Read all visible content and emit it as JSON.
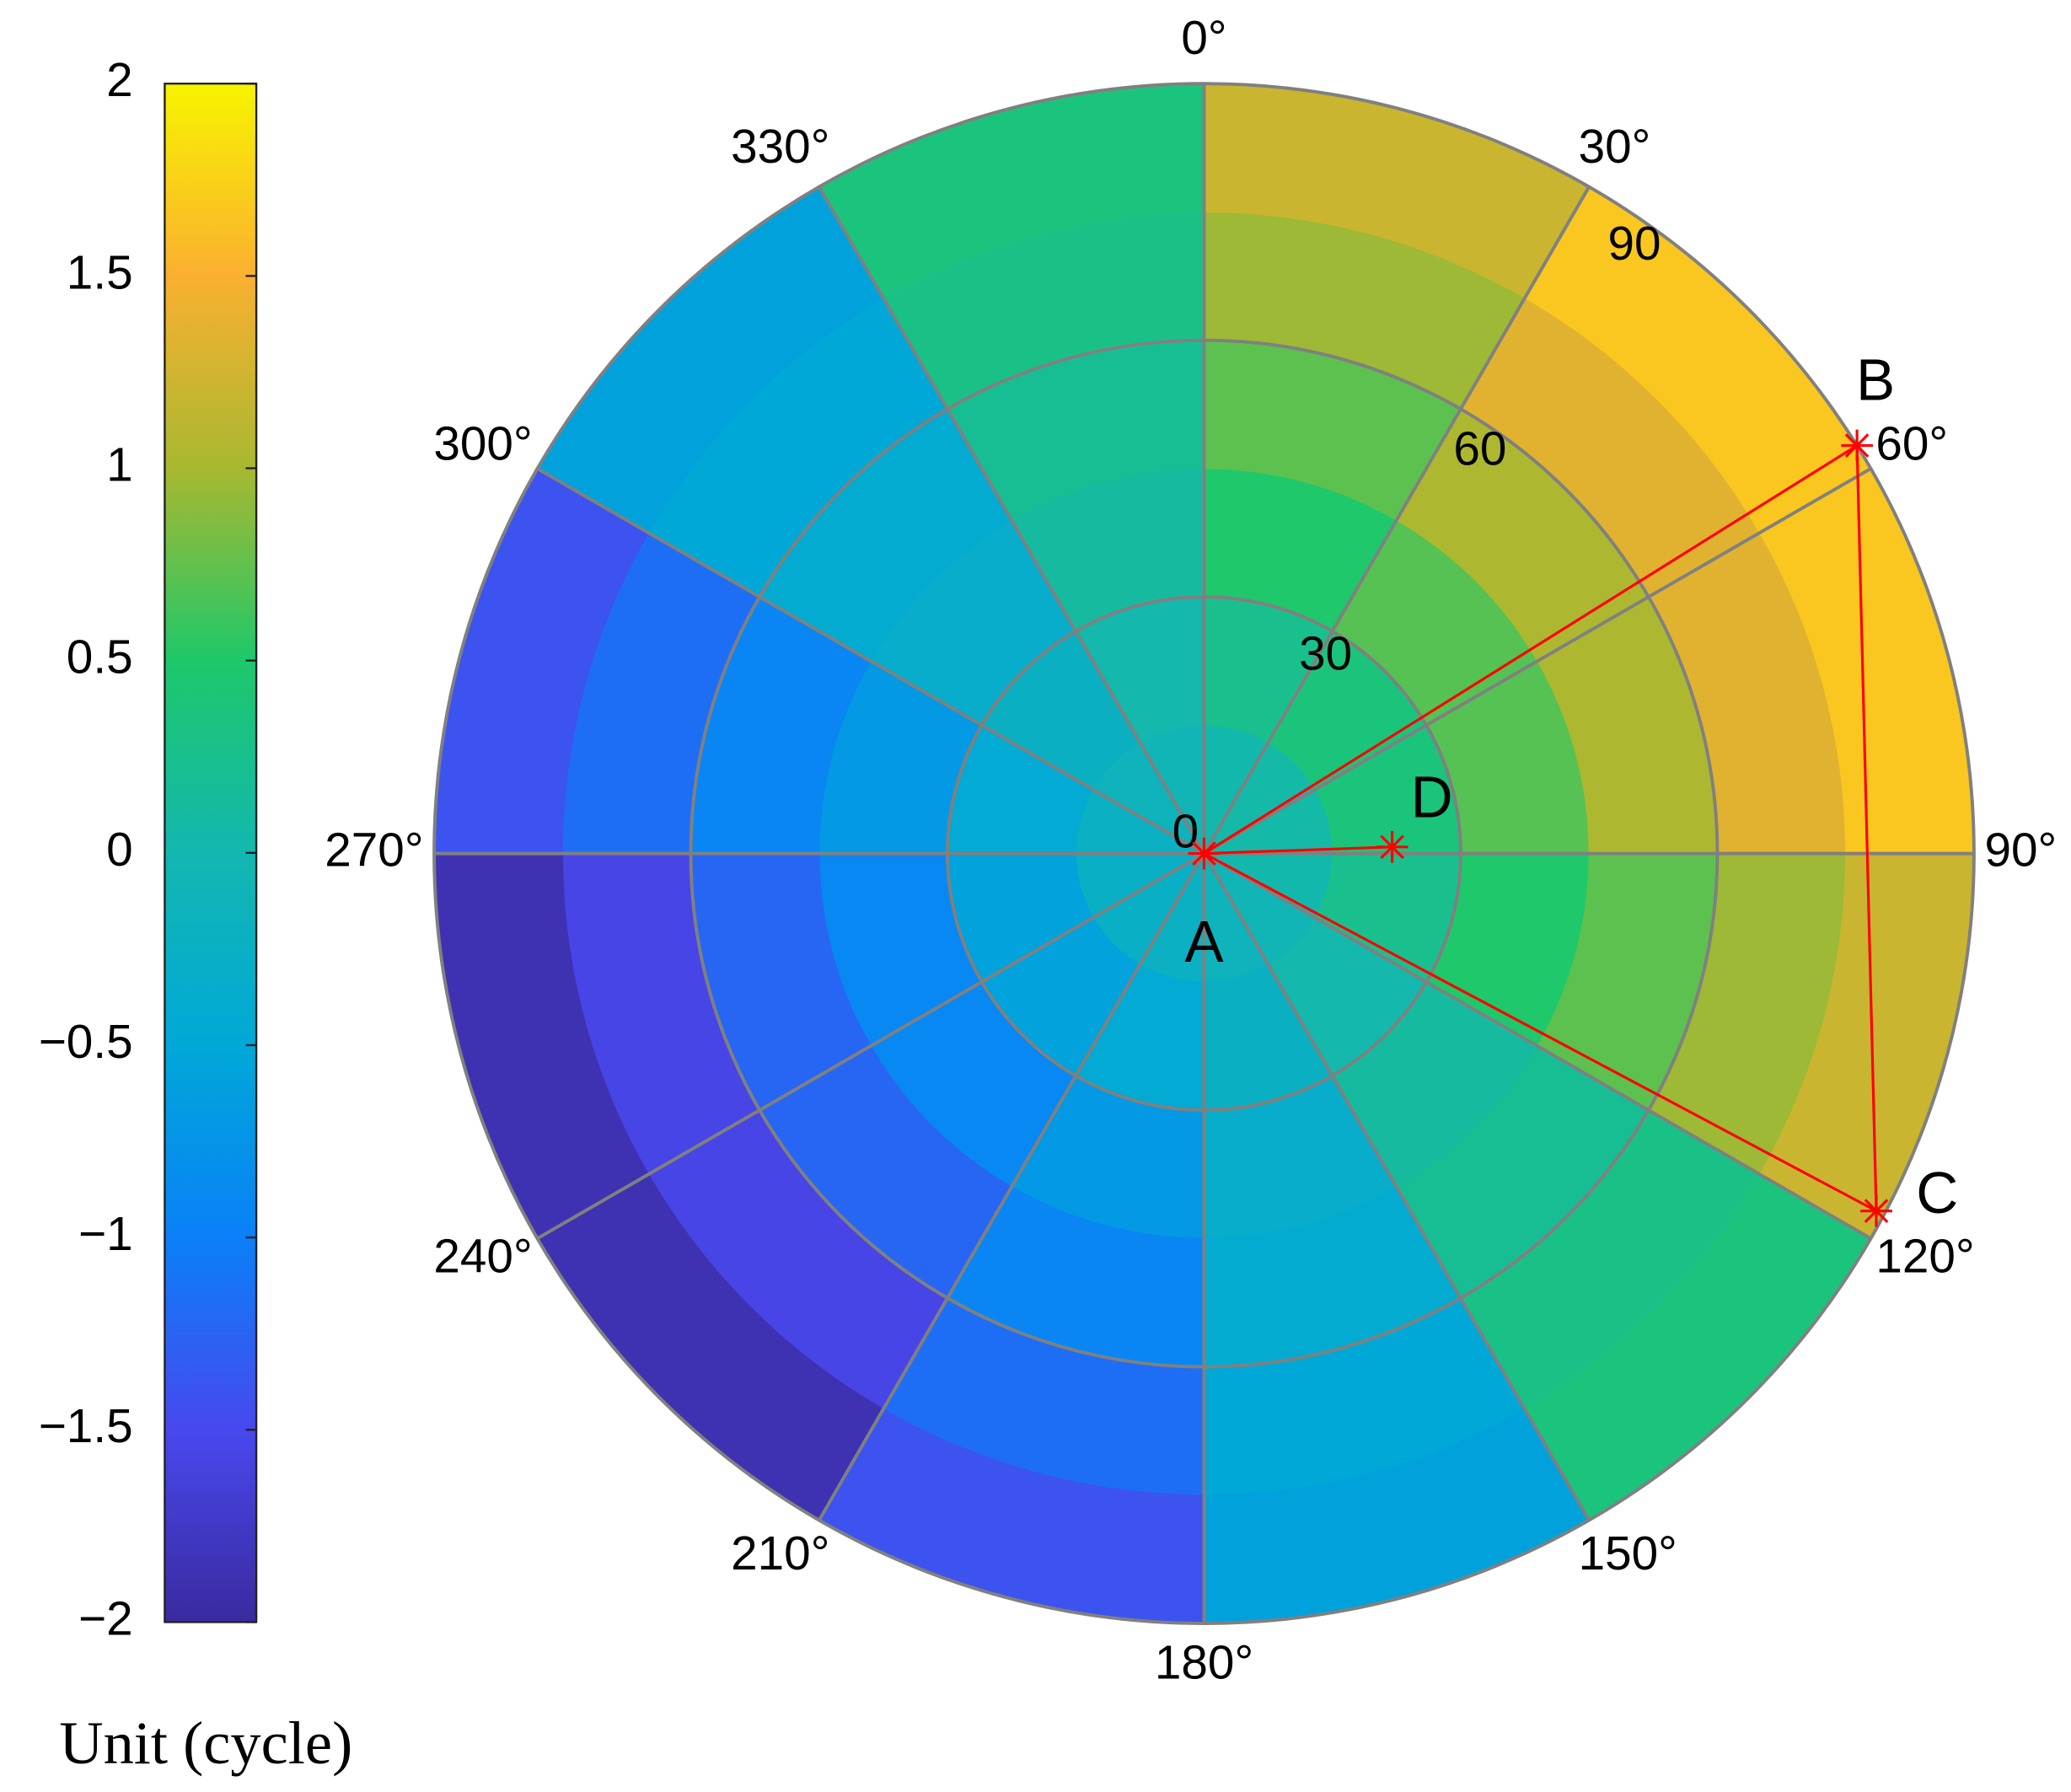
{
  "chart_data": {
    "type": "polar-heatmap",
    "colorbar_label": "Unit (cycle)",
    "clim": [
      -2,
      2
    ],
    "cticks": [
      {
        "value": -2,
        "label": "−2"
      },
      {
        "value": -1.5,
        "label": "−1.5"
      },
      {
        "value": -1,
        "label": "−1"
      },
      {
        "value": -0.5,
        "label": "−0.5"
      },
      0,
      0.5,
      1,
      1.5,
      2
    ],
    "colormap": [
      "#3a2a9e",
      "#4848ee",
      "#0a80f8",
      "#00a8d8",
      "#13b7b0",
      "#1ec86a",
      "#a8b830",
      "#fab030",
      "#f8f400"
    ],
    "rlim": [
      0,
      90
    ],
    "rticks": [
      0,
      30,
      60,
      90
    ],
    "thetaticks": [
      {
        "value": 0,
        "label": "0°"
      },
      {
        "value": 30,
        "label": "30°"
      },
      {
        "value": 60,
        "label": "60°"
      },
      {
        "value": 90,
        "label": "90°"
      },
      {
        "value": 120,
        "label": "120°"
      },
      {
        "value": 150,
        "label": "150°"
      },
      {
        "value": 180,
        "label": "180°"
      },
      {
        "value": 210,
        "label": "210°"
      },
      {
        "value": 240,
        "label": "240°"
      },
      {
        "value": 270,
        "label": "270°"
      },
      {
        "value": 300,
        "label": "300°"
      },
      {
        "value": 330,
        "label": "330°"
      }
    ],
    "grid": true,
    "field": {
      "theta_edges": [
        0,
        30,
        60,
        90,
        120,
        150,
        180,
        210,
        240,
        270,
        300,
        330,
        360
      ],
      "r_edges": [
        0,
        15,
        30,
        45,
        60,
        75,
        90
      ],
      "values": [
        [
          0.02,
          0.25,
          0.49,
          0.73,
          0.96,
          1.2
        ],
        [
          0.06,
          0.38,
          0.7,
          1.03,
          1.35,
          1.67
        ],
        [
          0.06,
          0.38,
          0.7,
          1.03,
          1.35,
          1.67
        ],
        [
          0.02,
          0.25,
          0.49,
          0.73,
          0.96,
          1.2
        ],
        [
          -0.06,
          0.03,
          0.12,
          0.2,
          0.29,
          0.37
        ],
        [
          -0.14,
          -0.23,
          -0.32,
          -0.4,
          -0.49,
          -0.57
        ],
        [
          -0.22,
          -0.45,
          -0.69,
          -0.93,
          -1.16,
          -1.4
        ],
        [
          -0.26,
          -0.58,
          -0.9,
          -1.23,
          -1.55,
          -1.87
        ],
        [
          -0.26,
          -0.58,
          -0.9,
          -1.23,
          -1.55,
          -1.87
        ],
        [
          -0.22,
          -0.45,
          -0.69,
          -0.93,
          -1.16,
          -1.4
        ],
        [
          -0.14,
          -0.23,
          -0.32,
          -0.4,
          -0.49,
          -0.57
        ],
        [
          -0.06,
          0.03,
          0.12,
          0.2,
          0.29,
          0.37
        ]
      ]
    },
    "points": {
      "labels": [
        "A",
        "B",
        "C",
        "D"
      ],
      "theta": [
        0,
        58,
        118,
        88
      ],
      "r": [
        0,
        90,
        89,
        22
      ],
      "color": "#ff0000"
    }
  }
}
